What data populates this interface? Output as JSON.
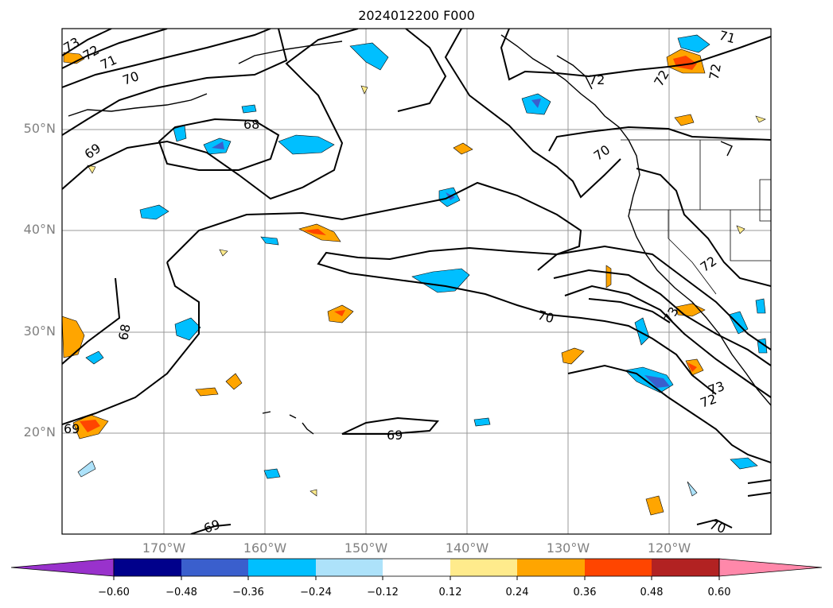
{
  "title": "2024012200 F000",
  "map": {
    "lat_labels": [
      "50°N",
      "40°N",
      "30°N",
      "20°N"
    ],
    "lon_labels": [
      "170°W",
      "160°W",
      "150°W",
      "140°W",
      "130°W",
      "120°W"
    ],
    "gridline_color": "#999999",
    "label_color": "#808080"
  },
  "contour_labels": [
    "73",
    "72",
    "71",
    "70",
    "68",
    "69",
    "70",
    "72",
    "68",
    "69",
    "69",
    "70",
    "73",
    "72",
    "69",
    "71",
    "72",
    "72",
    "70",
    "72",
    "73"
  ],
  "colorbar": {
    "ticks": [
      "−0.60",
      "−0.48",
      "−0.36",
      "−0.24",
      "−0.12",
      "0.12",
      "0.24",
      "0.36",
      "0.48",
      "0.60"
    ],
    "colors": [
      "#9932CC",
      "#00008B",
      "#3A5FCD",
      "#00BFFF",
      "#ADE2FA",
      "#FFFFFF",
      "#FFEB8C",
      "#FFA500",
      "#FF4500",
      "#B22222",
      "#FF88AA"
    ]
  }
}
